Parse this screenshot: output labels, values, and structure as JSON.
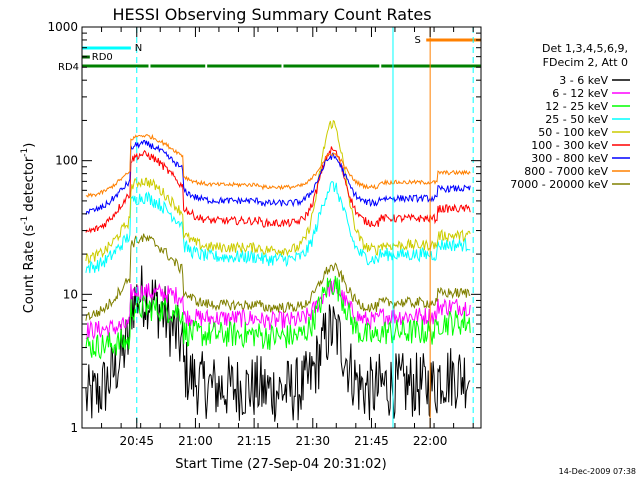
{
  "chart_data": {
    "type": "line",
    "title": "HESSI Observing Summary Count Rates",
    "xlabel": "Start Time (27-Sep-04 20:31:02)",
    "ylabel_main": "Count Rate (s",
    "ylabel_sup": "-1",
    "ylabel_mid": " detector",
    "ylabel_sup2": "-1",
    "ylabel_end": ")",
    "y_scale": "log",
    "ylim": [
      1,
      1000
    ],
    "xlim_min": [
      0,
      102
    ],
    "grid": false,
    "x_ticks": [
      {
        "t": 14,
        "label": "20:45"
      },
      {
        "t": 29,
        "label": "21:00"
      },
      {
        "t": 44,
        "label": "21:15"
      },
      {
        "t": 59,
        "label": "21:30"
      },
      {
        "t": 74,
        "label": "21:45"
      },
      {
        "t": 89,
        "label": "22:00"
      }
    ],
    "y_ticks": [
      {
        "v": 1,
        "label": "1"
      },
      {
        "v": 10,
        "label": "10"
      },
      {
        "v": 100,
        "label": "100"
      },
      {
        "v": 1000,
        "label": "1000"
      }
    ],
    "legend_header": [
      "Det 1,3,4,5,6,9,",
      "FDecim 2, Att 0"
    ],
    "legend_position": "right",
    "series": [
      {
        "name": "3 - 6 keV",
        "color": "#000000"
      },
      {
        "name": "6 - 12 keV",
        "color": "#ff00ff"
      },
      {
        "name": "12 - 25 keV",
        "color": "#00ff00"
      },
      {
        "name": "25 - 50 keV",
        "color": "#00ffff"
      },
      {
        "name": "50 - 100 keV",
        "color": "#cccc00"
      },
      {
        "name": "100 - 300 keV",
        "color": "#ff0000"
      },
      {
        "name": "300 - 800 keV",
        "color": "#0000ff"
      },
      {
        "name": "800 - 7000 keV",
        "color": "#ff8000"
      },
      {
        "name": "7000 - 20000 keV",
        "color": "#808000"
      }
    ],
    "flags": [
      {
        "label": "N",
        "color": "#00ffff"
      },
      {
        "label": "RD0",
        "color": "#006400"
      },
      {
        "label": "RD4",
        "color": "#008000"
      },
      {
        "label": "S",
        "color": "#ff8000"
      }
    ],
    "timestamp": "14-Dec-2009 07:38"
  }
}
